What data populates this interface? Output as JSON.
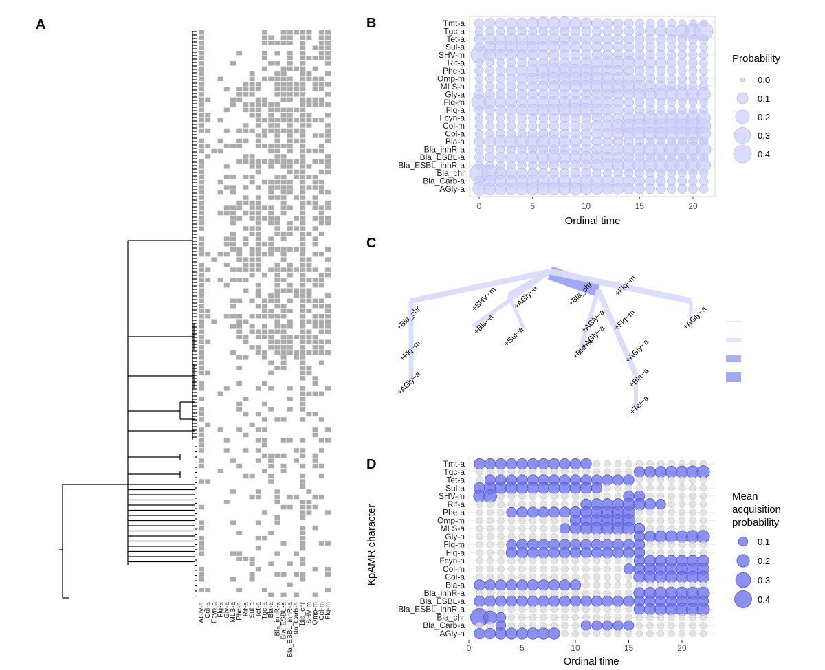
{
  "colors": {
    "prob_fill": "#c9cdfa",
    "prob_stroke": "#b7bcf5",
    "acq_fill": "#6f74ea",
    "acq_stroke": "#4f55d8",
    "grey_fill": "#dcdcdc",
    "grey_stroke": "#c6c6c6",
    "grid": "#ebebeb",
    "tile": "#ababab",
    "tree_light": "#d9dcfb",
    "tree_dark": "#9da2f1"
  },
  "panels": {
    "A": {
      "letter": "A",
      "columns": [
        "AGly-a",
        "Col-a",
        "Fcyn-a",
        "Flq-a",
        "Gly-a",
        "MLS-a",
        "Phe-a",
        "Rif-a",
        "Sul-a",
        "Tet-a",
        "Tgc-a",
        "Bla-a",
        "Bla_inhR-a",
        "Bla_ESBL-a",
        "Bla_ESBL_inhR-a",
        "Bla_Carb-a",
        "Bla_chr",
        "SHV-m",
        "Omp-m",
        "Col-m",
        "Flq-m"
      ]
    },
    "B": {
      "letter": "B"
    },
    "C": {
      "letter": "C",
      "labels": [
        "+Bla_chr",
        "+Flq−m",
        "+AGly−a",
        "+SHV−m",
        "+Bla−a",
        "+AGly−a",
        "+Sul−a",
        "+Bla_chr",
        "+AGly−a",
        "+Flq−m",
        "+AGly−a",
        "+Flq−m",
        "+Bla−a",
        "+AGly−a",
        "+Bla−a",
        "+Tet−a",
        "+AGly−a"
      ]
    },
    "D": {
      "letter": "D"
    }
  },
  "chart_data": [
    {
      "panel": "B",
      "type": "scatter",
      "xlabel": "Ordinal time",
      "ylabel": "",
      "xlim": [
        -1,
        22
      ],
      "xticks": [
        0,
        5,
        10,
        15,
        20
      ],
      "categories": [
        "Tmt-a",
        "Tgc-a",
        "Tet-a",
        "Sul-a",
        "SHV-m",
        "Rif-a",
        "Phe-a",
        "Omp-m",
        "MLS-a",
        "Gly-a",
        "Flq-m",
        "Flq-a",
        "Fcyn-a",
        "Col-m",
        "Col-a",
        "Bla-a",
        "Bla_inhR-a",
        "Bla_ESBL-a",
        "Bla_ESBL_inhR-a",
        "Bla_chr",
        "Bla_Carb-a",
        "AGly-a"
      ],
      "x": [
        0,
        1,
        2,
        3,
        4,
        5,
        6,
        7,
        8,
        9,
        10,
        11,
        12,
        13,
        14,
        15,
        16,
        17,
        18,
        19,
        20,
        21
      ],
      "size_variable": "Probability",
      "legend": {
        "title": "Probability",
        "values": [
          0.0,
          0.1,
          0.2,
          0.3,
          0.4
        ],
        "labels": [
          "0.0",
          "0.1",
          "0.2",
          "0.3",
          "0.4"
        ],
        "position": "right"
      },
      "grid": true,
      "values": [
        [
          0.06,
          0.08,
          0.08,
          0.1,
          0.1,
          0.12,
          0.14,
          0.14,
          0.16,
          0.12,
          0.1,
          0.08,
          0.07,
          0.06,
          0.05,
          0.04,
          0.04,
          0.03,
          0.03,
          0.02,
          0.02,
          0.02
        ],
        [
          0.03,
          0.03,
          0.03,
          0.03,
          0.04,
          0.04,
          0.04,
          0.05,
          0.05,
          0.05,
          0.05,
          0.05,
          0.05,
          0.05,
          0.06,
          0.06,
          0.08,
          0.1,
          0.12,
          0.18,
          0.26,
          0.42
        ],
        [
          0.06,
          0.1,
          0.1,
          0.12,
          0.12,
          0.12,
          0.1,
          0.1,
          0.1,
          0.1,
          0.08,
          0.08,
          0.07,
          0.07,
          0.06,
          0.05,
          0.05,
          0.05,
          0.05,
          0.04,
          0.04,
          0.04
        ],
        [
          0.05,
          0.12,
          0.14,
          0.14,
          0.14,
          0.12,
          0.1,
          0.1,
          0.1,
          0.08,
          0.08,
          0.08,
          0.07,
          0.07,
          0.06,
          0.05,
          0.05,
          0.04,
          0.04,
          0.04,
          0.03,
          0.03
        ],
        [
          0.32,
          0.12,
          0.08,
          0.08,
          0.08,
          0.07,
          0.07,
          0.06,
          0.06,
          0.06,
          0.06,
          0.06,
          0.06,
          0.06,
          0.06,
          0.06,
          0.05,
          0.05,
          0.05,
          0.04,
          0.04,
          0.04
        ],
        [
          0.02,
          0.02,
          0.02,
          0.04,
          0.04,
          0.05,
          0.06,
          0.06,
          0.07,
          0.08,
          0.1,
          0.12,
          0.12,
          0.14,
          0.14,
          0.12,
          0.1,
          0.08,
          0.06,
          0.05,
          0.04,
          0.03
        ],
        [
          0.04,
          0.04,
          0.06,
          0.08,
          0.1,
          0.14,
          0.18,
          0.2,
          0.2,
          0.18,
          0.16,
          0.12,
          0.1,
          0.08,
          0.06,
          0.05,
          0.05,
          0.04,
          0.04,
          0.03,
          0.03,
          0.03
        ],
        [
          0.03,
          0.04,
          0.05,
          0.06,
          0.08,
          0.1,
          0.12,
          0.14,
          0.16,
          0.16,
          0.16,
          0.16,
          0.14,
          0.12,
          0.1,
          0.08,
          0.06,
          0.05,
          0.04,
          0.04,
          0.03,
          0.03
        ],
        [
          0.03,
          0.03,
          0.04,
          0.05,
          0.06,
          0.07,
          0.08,
          0.09,
          0.1,
          0.12,
          0.12,
          0.14,
          0.16,
          0.16,
          0.16,
          0.14,
          0.1,
          0.08,
          0.06,
          0.05,
          0.04,
          0.04
        ],
        [
          0.05,
          0.05,
          0.05,
          0.06,
          0.06,
          0.06,
          0.06,
          0.07,
          0.07,
          0.07,
          0.07,
          0.08,
          0.08,
          0.08,
          0.08,
          0.12,
          0.14,
          0.16,
          0.18,
          0.18,
          0.18,
          0.18
        ],
        [
          0.24,
          0.14,
          0.1,
          0.1,
          0.1,
          0.1,
          0.12,
          0.12,
          0.12,
          0.12,
          0.12,
          0.1,
          0.1,
          0.08,
          0.06,
          0.05,
          0.05,
          0.04,
          0.04,
          0.03,
          0.03,
          0.03
        ],
        [
          0.04,
          0.06,
          0.08,
          0.08,
          0.1,
          0.12,
          0.14,
          0.14,
          0.16,
          0.18,
          0.18,
          0.14,
          0.1,
          0.08,
          0.06,
          0.05,
          0.05,
          0.04,
          0.04,
          0.03,
          0.03,
          0.03
        ],
        [
          0.03,
          0.03,
          0.03,
          0.03,
          0.04,
          0.04,
          0.04,
          0.05,
          0.05,
          0.05,
          0.05,
          0.06,
          0.06,
          0.08,
          0.1,
          0.12,
          0.16,
          0.18,
          0.18,
          0.18,
          0.18,
          0.18
        ],
        [
          0.03,
          0.03,
          0.03,
          0.04,
          0.04,
          0.04,
          0.05,
          0.05,
          0.06,
          0.06,
          0.08,
          0.1,
          0.14,
          0.18,
          0.2,
          0.2,
          0.2,
          0.2,
          0.2,
          0.2,
          0.2,
          0.2
        ],
        [
          0.03,
          0.03,
          0.04,
          0.04,
          0.04,
          0.05,
          0.05,
          0.05,
          0.06,
          0.06,
          0.08,
          0.08,
          0.1,
          0.12,
          0.14,
          0.16,
          0.18,
          0.18,
          0.2,
          0.2,
          0.2,
          0.2
        ],
        [
          0.06,
          0.1,
          0.16,
          0.2,
          0.2,
          0.2,
          0.18,
          0.14,
          0.12,
          0.1,
          0.08,
          0.07,
          0.06,
          0.06,
          0.05,
          0.05,
          0.05,
          0.04,
          0.04,
          0.04,
          0.04,
          0.04
        ],
        [
          0.03,
          0.03,
          0.03,
          0.03,
          0.04,
          0.04,
          0.05,
          0.06,
          0.06,
          0.07,
          0.08,
          0.08,
          0.1,
          0.12,
          0.14,
          0.16,
          0.2,
          0.22,
          0.24,
          0.24,
          0.22,
          0.22
        ],
        [
          0.05,
          0.07,
          0.08,
          0.1,
          0.12,
          0.14,
          0.16,
          0.18,
          0.18,
          0.16,
          0.14,
          0.12,
          0.1,
          0.08,
          0.07,
          0.06,
          0.06,
          0.05,
          0.05,
          0.04,
          0.04,
          0.04
        ],
        [
          0.03,
          0.03,
          0.03,
          0.03,
          0.04,
          0.04,
          0.05,
          0.05,
          0.06,
          0.07,
          0.08,
          0.1,
          0.12,
          0.14,
          0.16,
          0.18,
          0.2,
          0.22,
          0.22,
          0.22,
          0.22,
          0.2
        ],
        [
          0.42,
          0.32,
          0.12,
          0.1,
          0.08,
          0.07,
          0.06,
          0.05,
          0.05,
          0.05,
          0.05,
          0.04,
          0.04,
          0.04,
          0.04,
          0.04,
          0.04,
          0.03,
          0.03,
          0.03,
          0.03,
          0.03
        ],
        [
          0.08,
          0.1,
          0.12,
          0.12,
          0.14,
          0.14,
          0.14,
          0.14,
          0.14,
          0.16,
          0.16,
          0.16,
          0.14,
          0.12,
          0.1,
          0.08,
          0.07,
          0.06,
          0.05,
          0.05,
          0.04,
          0.04
        ],
        [
          0.16,
          0.14,
          0.12,
          0.12,
          0.14,
          0.14,
          0.14,
          0.14,
          0.14,
          0.14,
          0.12,
          0.12,
          0.1,
          0.1,
          0.08,
          0.07,
          0.06,
          0.06,
          0.05,
          0.05,
          0.05,
          0.04
        ]
      ]
    },
    {
      "panel": "D",
      "type": "scatter",
      "xlabel": "Ordinal time",
      "ylabel": "KpAMR character",
      "xlim": [
        0,
        22.5
      ],
      "xticks": [
        0,
        5,
        10,
        15,
        20
      ],
      "categories": [
        "Tmt-a",
        "Tgc-a",
        "Tet-a",
        "Sul-a",
        "SHV-m",
        "Rif-a",
        "Phe-a",
        "Omp-m",
        "MLS-a",
        "Gly-a",
        "Flq-m",
        "Flq-a",
        "Fcyn-a",
        "Col-m",
        "Col-a",
        "Bla-a",
        "Bla_inhR-a",
        "Bla_ESBL-a",
        "Bla_ESBL_inhR-a",
        "Bla_chr",
        "Bla_Carb-a",
        "AGly-a"
      ],
      "x": [
        1,
        2,
        3,
        4,
        5,
        6,
        7,
        8,
        9,
        10,
        11,
        12,
        13,
        14,
        15,
        16,
        17,
        18,
        19,
        20,
        21,
        22
      ],
      "size_variable": "Mean acquisition probability",
      "legend": {
        "title": [
          "Mean",
          "acquisition",
          "probability"
        ],
        "values": [
          0.1,
          0.2,
          0.3,
          0.4
        ],
        "labels": [
          "0.1",
          "0.2",
          "0.3",
          "0.4"
        ],
        "position": "right"
      },
      "grid": true,
      "values": [
        [
          0.14,
          0.14,
          0.14,
          0.14,
          0.14,
          0.14,
          0.14,
          0.14,
          0.14,
          0.14,
          0.14,
          0,
          0,
          0,
          0,
          0,
          0,
          0,
          0,
          0,
          0,
          0
        ],
        [
          0,
          0,
          0,
          0,
          0,
          0,
          0,
          0,
          0,
          0,
          0,
          0,
          0,
          0,
          0,
          0.14,
          0.15,
          0.16,
          0.17,
          0.18,
          0.19,
          0.2
        ],
        [
          0,
          0.14,
          0.14,
          0.14,
          0.14,
          0.14,
          0.14,
          0.14,
          0.14,
          0.14,
          0.14,
          0.14,
          0.14,
          0.14,
          0.14,
          0,
          0,
          0,
          0,
          0,
          0,
          0
        ],
        [
          0.15,
          0.18,
          0.18,
          0.18,
          0.18,
          0.16,
          0.16,
          0.16,
          0.16,
          0.16,
          0.16,
          0.14,
          0,
          0,
          0,
          0,
          0,
          0,
          0,
          0,
          0,
          0
        ],
        [
          0.18,
          0.22,
          0,
          0,
          0,
          0,
          0,
          0,
          0,
          0,
          0,
          0,
          0,
          0,
          0.14,
          0.14,
          0,
          0,
          0,
          0,
          0,
          0
        ],
        [
          0,
          0,
          0,
          0,
          0,
          0,
          0,
          0,
          0,
          0,
          0.14,
          0.16,
          0.16,
          0.16,
          0.18,
          0.18,
          0.16,
          0.12,
          0,
          0,
          0,
          0
        ],
        [
          0,
          0,
          0,
          0.12,
          0.14,
          0.14,
          0.14,
          0.14,
          0.14,
          0.16,
          0.16,
          0.18,
          0.2,
          0.2,
          0.2,
          0,
          0,
          0,
          0,
          0,
          0,
          0
        ],
        [
          0,
          0,
          0,
          0,
          0,
          0,
          0,
          0,
          0,
          0.14,
          0.16,
          0.18,
          0.18,
          0.2,
          0.2,
          0,
          0,
          0,
          0,
          0,
          0,
          0
        ],
        [
          0,
          0,
          0,
          0,
          0,
          0,
          0,
          0,
          0.12,
          0.16,
          0.18,
          0.2,
          0.2,
          0.2,
          0.2,
          0.14,
          0,
          0,
          0,
          0,
          0,
          0
        ],
        [
          0,
          0,
          0,
          0,
          0,
          0,
          0,
          0,
          0,
          0,
          0,
          0,
          0,
          0,
          0,
          0.14,
          0.16,
          0.18,
          0.18,
          0.18,
          0.2,
          0.2
        ],
        [
          0,
          0,
          0,
          0.12,
          0.14,
          0.14,
          0.14,
          0.14,
          0.14,
          0.14,
          0.14,
          0.14,
          0.14,
          0.14,
          0.14,
          0.14,
          0,
          0,
          0,
          0,
          0,
          0
        ],
        [
          0,
          0,
          0,
          0.14,
          0.14,
          0.14,
          0.14,
          0.14,
          0.14,
          0.14,
          0.14,
          0.14,
          0.14,
          0.14,
          0.14,
          0.14,
          0,
          0,
          0,
          0,
          0,
          0
        ],
        [
          0,
          0,
          0,
          0,
          0,
          0,
          0,
          0,
          0,
          0,
          0,
          0,
          0,
          0,
          0,
          0.14,
          0.16,
          0.16,
          0.16,
          0.16,
          0.16,
          0.16
        ],
        [
          0,
          0,
          0,
          0,
          0,
          0,
          0,
          0,
          0,
          0,
          0,
          0,
          0,
          0,
          0.12,
          0.16,
          0.18,
          0.18,
          0.18,
          0.18,
          0.18,
          0.18
        ],
        [
          0,
          0,
          0,
          0,
          0,
          0,
          0,
          0,
          0,
          0,
          0,
          0,
          0,
          0,
          0,
          0.16,
          0.18,
          0.18,
          0.18,
          0.18,
          0.18,
          0.18
        ],
        [
          0.14,
          0.14,
          0.14,
          0.14,
          0.14,
          0.14,
          0.14,
          0.14,
          0.14,
          0.14,
          0,
          0,
          0,
          0,
          0,
          0,
          0,
          0,
          0,
          0,
          0,
          0
        ],
        [
          0,
          0,
          0,
          0,
          0,
          0,
          0,
          0,
          0,
          0,
          0,
          0,
          0,
          0,
          0,
          0.16,
          0.18,
          0.2,
          0.2,
          0.2,
          0.2,
          0.2
        ],
        [
          0.14,
          0.14,
          0.14,
          0.14,
          0.14,
          0.14,
          0.14,
          0.14,
          0.14,
          0.14,
          0.14,
          0.14,
          0.14,
          0.14,
          0.14,
          0.14,
          0.14,
          0.14,
          0.14,
          0.14,
          0.14,
          0.14
        ],
        [
          0,
          0,
          0,
          0,
          0,
          0,
          0,
          0,
          0,
          0,
          0,
          0,
          0,
          0,
          0,
          0.14,
          0.16,
          0.18,
          0.18,
          0.2,
          0.2,
          0.2
        ],
        [
          0.44,
          0.22,
          0.12,
          0,
          0,
          0,
          0,
          0,
          0,
          0,
          0,
          0,
          0,
          0,
          0,
          0,
          0,
          0,
          0,
          0,
          0,
          0
        ],
        [
          0,
          0,
          0.12,
          0,
          0,
          0,
          0,
          0,
          0,
          0,
          0.12,
          0.12,
          0.12,
          0.12,
          0.12,
          0,
          0,
          0,
          0,
          0,
          0,
          0
        ],
        [
          0.14,
          0.14,
          0.16,
          0.16,
          0.16,
          0.16,
          0.16,
          0.16,
          0,
          0,
          0,
          0,
          0,
          0,
          0,
          0,
          0,
          0,
          0,
          0,
          0,
          0
        ]
      ]
    }
  ]
}
